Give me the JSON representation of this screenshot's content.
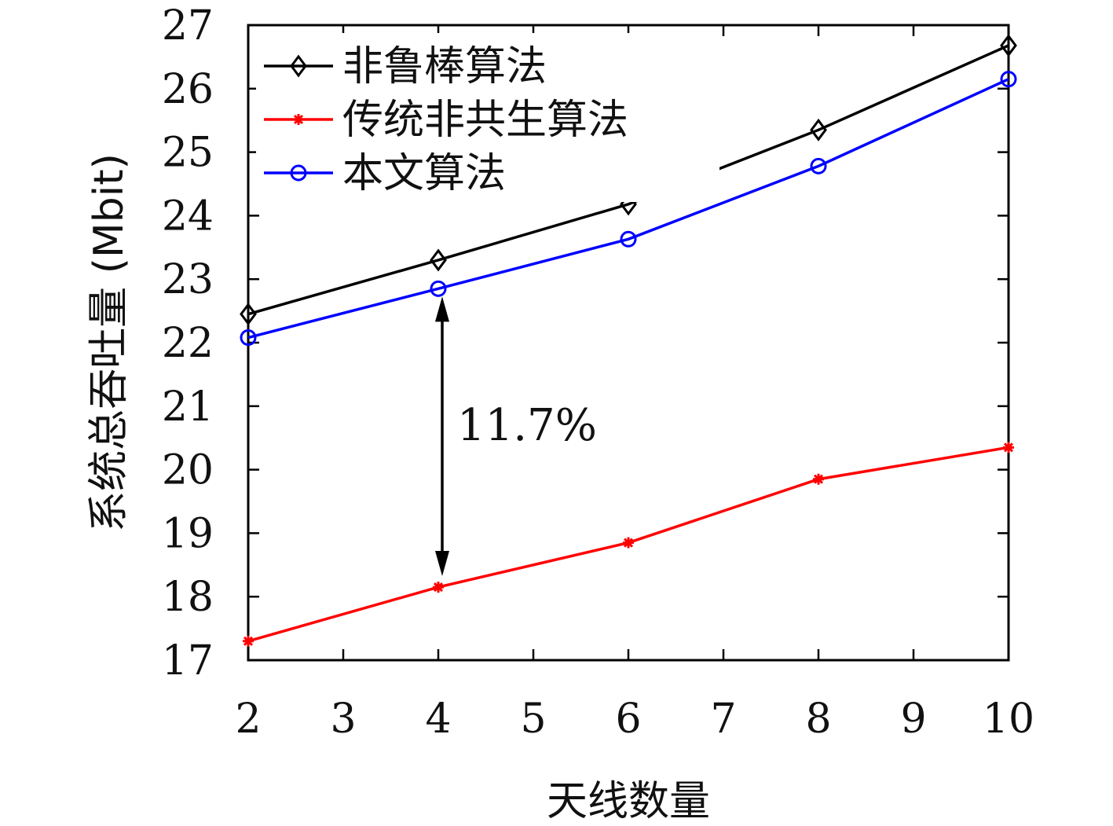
{
  "chart_data": {
    "type": "line",
    "xlabel": "天线数量",
    "ylabel": "系统总吞吐量 (Mbit)",
    "x": [
      2,
      4,
      6,
      8,
      10
    ],
    "xlim": [
      2,
      10
    ],
    "ylim": [
      17,
      27
    ],
    "xticks": [
      "2",
      "3",
      "4",
      "5",
      "6",
      "7",
      "8",
      "9",
      "10"
    ],
    "yticks": [
      "17",
      "18",
      "19",
      "20",
      "21",
      "22",
      "23",
      "24",
      "25",
      "26",
      "27"
    ],
    "grid": false,
    "legend_position": "top-left",
    "series": [
      {
        "name": "非鲁棒算法",
        "color": "#000000",
        "marker": "diamond",
        "values": [
          22.45,
          23.3,
          24.18,
          25.35,
          26.68
        ]
      },
      {
        "name": "传统非共生算法",
        "color": "#ff0000",
        "marker": "asterisk",
        "values": [
          17.3,
          18.15,
          18.85,
          19.85,
          20.35
        ]
      },
      {
        "name": "本文算法",
        "color": "#0000ff",
        "marker": "circle",
        "values": [
          22.08,
          22.85,
          23.63,
          24.78,
          26.15
        ]
      }
    ],
    "annotation": {
      "text": "11.7%",
      "x": 4,
      "y_from": 22.8,
      "y_to": 18.25
    }
  }
}
